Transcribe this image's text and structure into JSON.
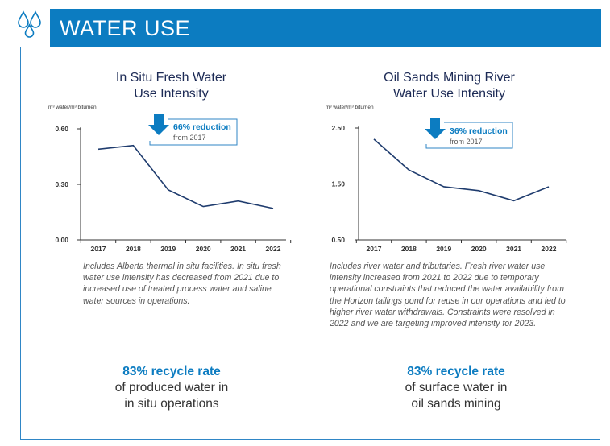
{
  "header": {
    "title": "WATER USE",
    "icon": "water-drops-icon",
    "color": "#0c7cc1"
  },
  "charts": [
    {
      "title_line1": "In Situ Fresh Water",
      "title_line2": "Use Intensity",
      "unit": "m³ water/m³ bitumen",
      "callout": {
        "value": "66% reduction",
        "sub": "from 2017",
        "icon": "down-arrow-icon"
      },
      "note": "Includes Alberta thermal in situ facilities. In situ fresh water use intensity has decreased from 2021 due to increased use of treated process water and saline water sources in operations.",
      "recycle": {
        "headline": "83% recycle rate",
        "line2": "of produced water in",
        "line3": "in situ operations"
      }
    },
    {
      "title_line1": "Oil Sands Mining River",
      "title_line2": "Water Use Intensity",
      "unit": "m³ water/m³ bitumen",
      "callout": {
        "value": "36% reduction",
        "sub": "from 2017",
        "icon": "down-arrow-icon"
      },
      "note": "Includes river water and tributaries. Fresh river water use intensity increased from 2021 to 2022 due to temporary operational constraints that reduced the water availability from the Horizon tailings pond for reuse in our operations and led to higher river water withdrawals. Constraints were resolved in 2022 and we are targeting improved intensity for 2023.",
      "recycle": {
        "headline": "83% recycle rate",
        "line2": "of surface water in",
        "line3": "oil sands mining"
      }
    }
  ],
  "chart_data": [
    {
      "type": "line",
      "title": "In Situ Fresh Water Use Intensity",
      "ylabel": "m³ water/m³ bitumen",
      "x": [
        "2017",
        "2018",
        "2019",
        "2020",
        "2021",
        "2022"
      ],
      "series": [
        {
          "values": [
            0.49,
            0.51,
            0.27,
            0.18,
            0.21,
            0.17
          ]
        }
      ],
      "ylim": [
        0,
        0.6
      ],
      "yticks": [
        "0.00",
        "0.30",
        "0.60"
      ],
      "line_color": "#1f3c6e",
      "grid": false
    },
    {
      "type": "line",
      "title": "Oil Sands Mining River Water Use Intensity",
      "ylabel": "m³ water/m³ bitumen",
      "x": [
        "2017",
        "2018",
        "2019",
        "2020",
        "2021",
        "2022"
      ],
      "series": [
        {
          "values": [
            2.3,
            1.75,
            1.45,
            1.38,
            1.2,
            1.45
          ]
        }
      ],
      "ylim": [
        0.5,
        2.5
      ],
      "yticks": [
        "0.50",
        "1.50",
        "2.50"
      ],
      "line_color": "#1f3c6e",
      "grid": false
    }
  ]
}
